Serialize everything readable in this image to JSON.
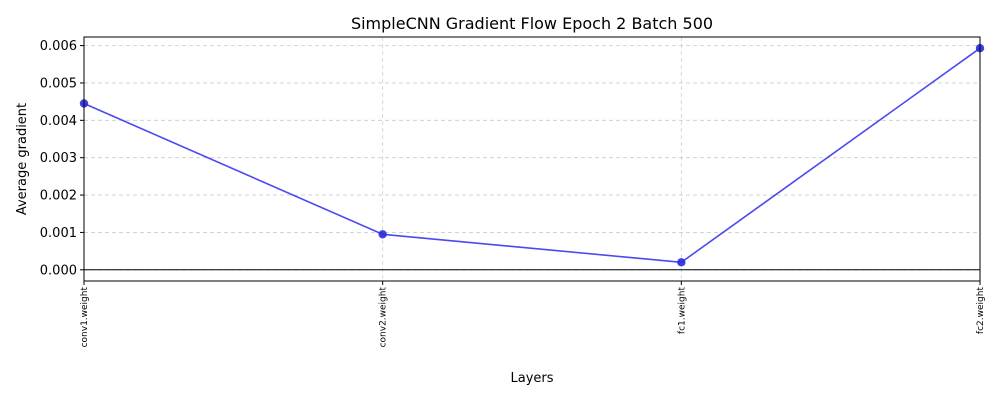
{
  "chart_data": {
    "type": "line",
    "title": "SimpleCNN Gradient Flow Epoch 2 Batch 500",
    "xlabel": "Layers",
    "ylabel": "Average gradient",
    "categories": [
      "conv1.weight",
      "conv2.weight",
      "fc1.weight",
      "fc2.weight"
    ],
    "series": [
      {
        "values": [
          0.00445,
          0.00095,
          0.0002,
          0.00593
        ]
      }
    ],
    "ylim": [
      -0.0003,
      0.00623
    ],
    "yticks": [
      0.0,
      0.001,
      0.002,
      0.003,
      0.004,
      0.005,
      0.006
    ],
    "ytick_labels": [
      "0.000",
      "0.001",
      "0.002",
      "0.003",
      "0.004",
      "0.005",
      "0.006"
    ],
    "grid": true,
    "zero_line": true,
    "colors": {
      "line": "#4a4af0",
      "marker": "#2b2bd8",
      "grid": "#cccccc",
      "zero_line": "#000000"
    }
  }
}
